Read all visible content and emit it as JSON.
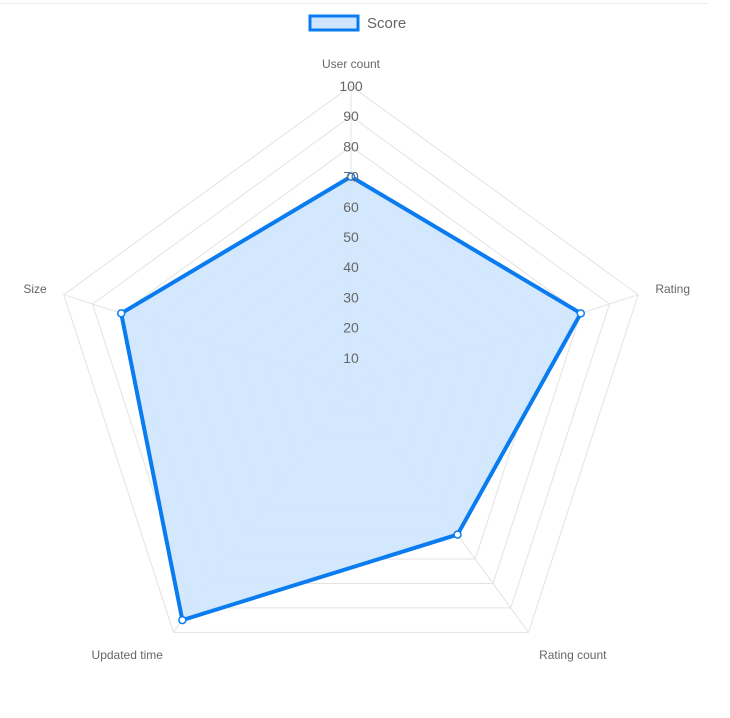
{
  "chart_data": {
    "type": "radar",
    "axes": [
      "User count",
      "Rating",
      "Rating count",
      "Updated time",
      "Size"
    ],
    "series": [
      {
        "name": "Score",
        "values": [
          70,
          80,
          60,
          95,
          80
        ]
      }
    ],
    "r_range": [
      0,
      100
    ],
    "r_ticks": [
      "10",
      "20",
      "30",
      "40",
      "50",
      "60",
      "70",
      "80",
      "90",
      "100"
    ],
    "legend_position": "top",
    "colors": {
      "line": "#0a7cf0",
      "fill": "#cfe5fd",
      "grid": "#e3e3e3",
      "point_fill": "#ffffff"
    }
  }
}
